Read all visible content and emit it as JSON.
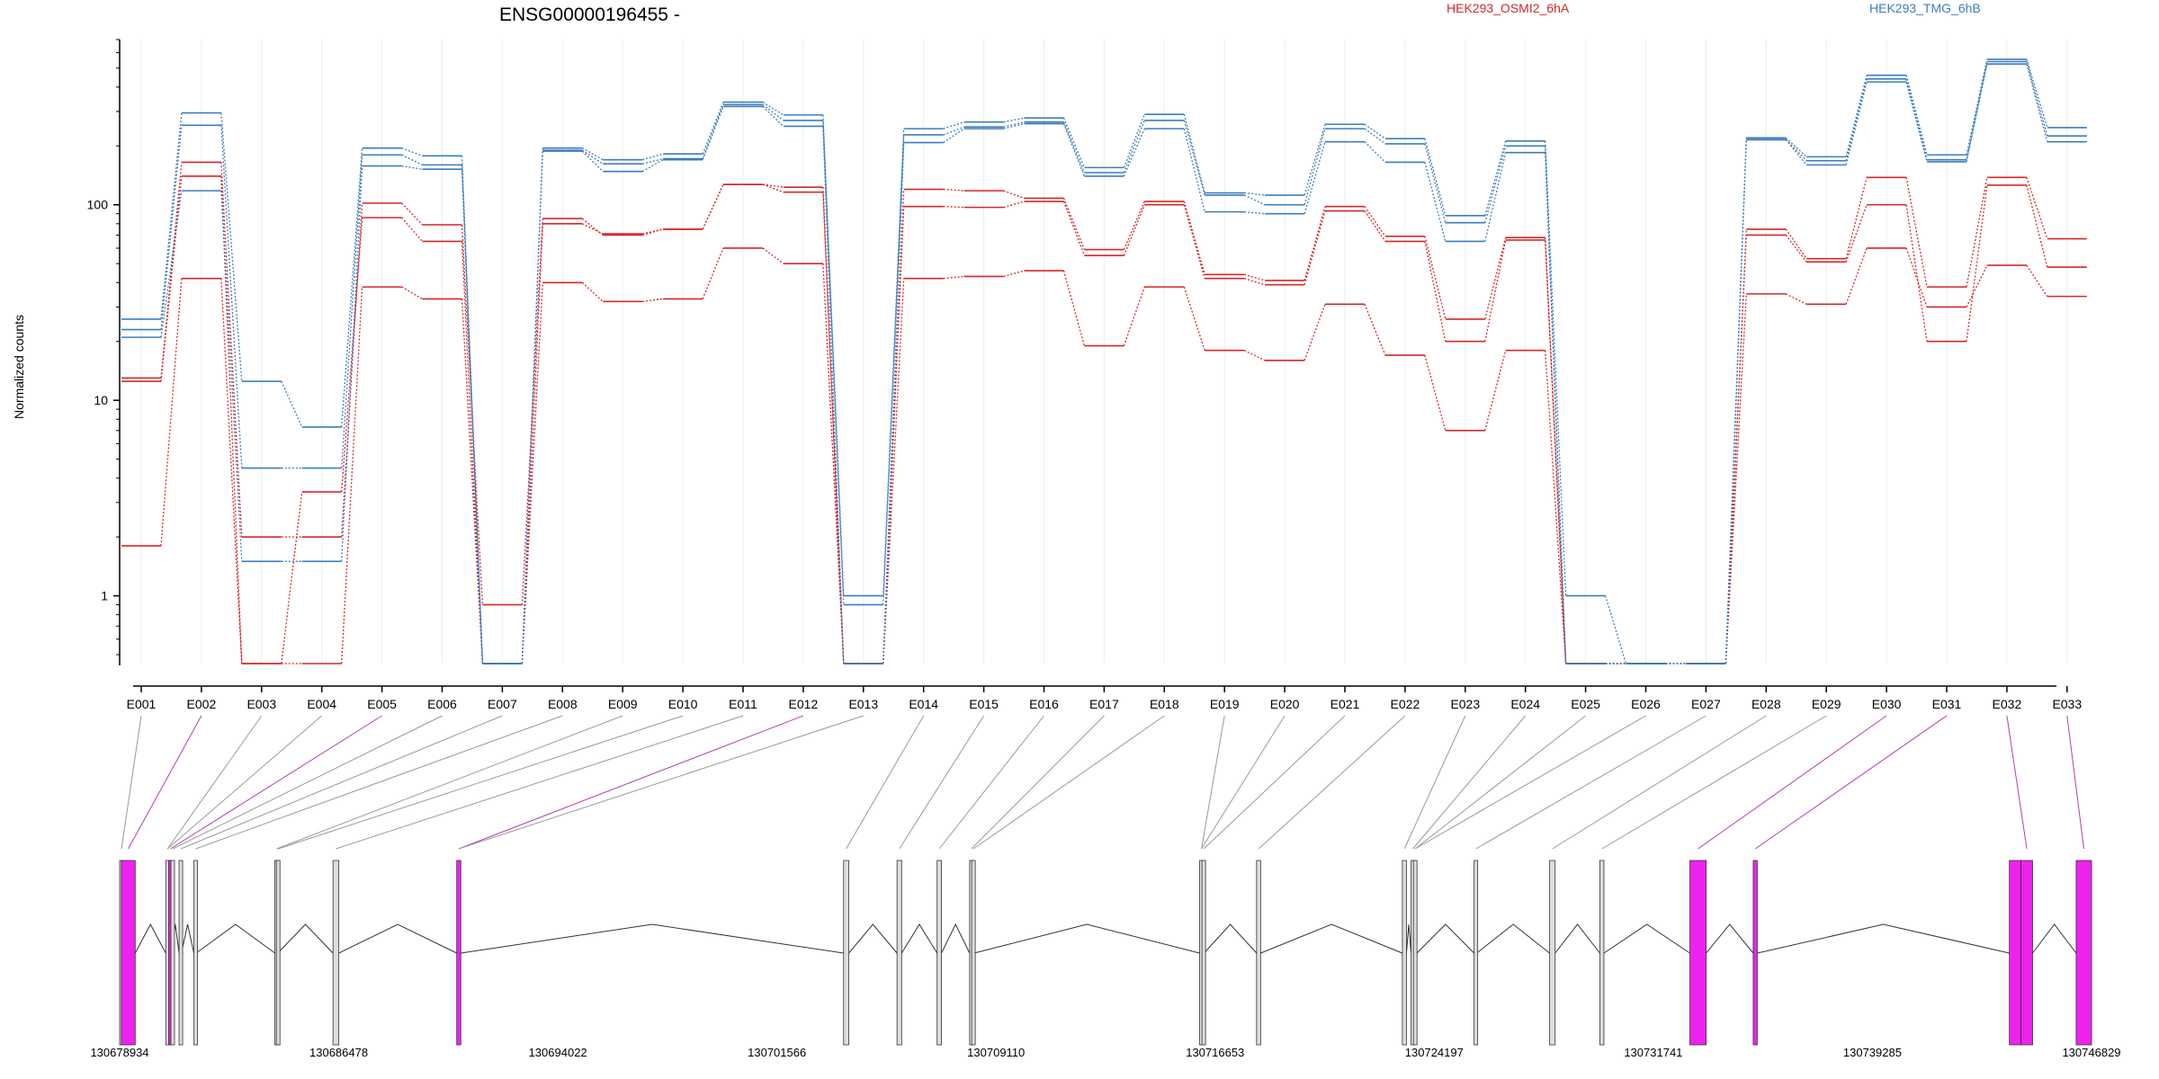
{
  "chart_data": {
    "type": "line",
    "title": "ENSG00000196455 -",
    "ylabel": "Normalized counts",
    "yscale": "log",
    "ylim": [
      0.45,
      700
    ],
    "yticks": [
      1,
      10,
      100
    ],
    "ytick_labels": [
      "1",
      "10",
      "100"
    ],
    "categories": [
      "E001",
      "E002",
      "E003",
      "E004",
      "E005",
      "E006",
      "E007",
      "E008",
      "E009",
      "E010",
      "E011",
      "E012",
      "E013",
      "E014",
      "E015",
      "E016",
      "E017",
      "E018",
      "E019",
      "E020",
      "E021",
      "E022",
      "E023",
      "E024",
      "E025",
      "E026",
      "E027",
      "E028",
      "E029",
      "E030",
      "E031",
      "E032",
      "E033"
    ],
    "legend": [
      {
        "label": "HEK293_OSMI2_6hA",
        "color": "#d62728"
      },
      {
        "label": "HEK293_TMG_6hB",
        "color": "#3b7dbd"
      }
    ],
    "series": [
      {
        "group": "HEK293_OSMI2_6hA",
        "color": "#d62728",
        "values": [
          13,
          165,
          2.0,
          2.0,
          102,
          79,
          0.9,
          85,
          70,
          75,
          127,
          123,
          0.45,
          120,
          118,
          108,
          59,
          104,
          44,
          41,
          98,
          69,
          26,
          68,
          0.45,
          0.45,
          0.45,
          75,
          53,
          138,
          38,
          138,
          67
        ]
      },
      {
        "group": "HEK293_OSMI2_6hA",
        "color": "#d62728",
        "values": [
          12.5,
          140,
          0.45,
          3.4,
          86,
          65,
          0.45,
          80,
          71,
          75,
          127,
          116,
          0.45,
          98,
          97,
          104,
          55,
          100,
          42,
          39,
          93,
          65,
          20,
          66,
          0.45,
          0.45,
          0.45,
          70,
          51,
          100,
          20,
          126,
          48
        ]
      },
      {
        "group": "HEK293_OSMI2_6hA",
        "color": "#d62728",
        "values": [
          1.8,
          42,
          0.45,
          0.45,
          38,
          33,
          0.45,
          40,
          32,
          33,
          60,
          50,
          0.45,
          42,
          43,
          46,
          19,
          38,
          18,
          16,
          31,
          17,
          7,
          18,
          0.45,
          0.45,
          0.45,
          35,
          31,
          60,
          30,
          49,
          34
        ]
      },
      {
        "group": "HEK293_TMG_6hB",
        "color": "#3b7dbd",
        "values": [
          26,
          295,
          12.5,
          7.3,
          195,
          178,
          0.45,
          195,
          170,
          182,
          335,
          288,
          1.0,
          245,
          265,
          278,
          155,
          290,
          115,
          112,
          258,
          218,
          88,
          212,
          1.0,
          0.45,
          0.45,
          220,
          176,
          460,
          180,
          555,
          248
        ]
      },
      {
        "group": "HEK293_TMG_6hB",
        "color": "#3b7dbd",
        "values": [
          23,
          255,
          4.5,
          4.5,
          180,
          160,
          0.45,
          190,
          162,
          172,
          325,
          270,
          0.9,
          228,
          250,
          265,
          146,
          270,
          112,
          100,
          245,
          205,
          81,
          200,
          0.45,
          0.45,
          0.45,
          216,
          168,
          440,
          170,
          540,
          225
        ]
      },
      {
        "group": "HEK293_TMG_6hB",
        "color": "#3b7dbd",
        "values": [
          21,
          118,
          1.5,
          1.5,
          158,
          152,
          0.45,
          188,
          148,
          170,
          318,
          252,
          0.45,
          208,
          245,
          260,
          140,
          245,
          92,
          90,
          210,
          165,
          65,
          185,
          0.45,
          0.45,
          0.45,
          215,
          160,
          425,
          166,
          525,
          210
        ]
      }
    ]
  },
  "gene_model": {
    "coordinate_labels": [
      "130678934",
      "130686478",
      "130694022",
      "130701566",
      "130709110",
      "130716653",
      "130724197",
      "130731741",
      "130739285",
      "130746829"
    ],
    "exons": [
      {
        "id": "E001",
        "start": 130678934,
        "end": 130678990,
        "highlight": false
      },
      {
        "id": "E002",
        "start": 130678990,
        "end": 130679470,
        "highlight": true
      },
      {
        "id": "E003",
        "start": 130680520,
        "end": 130680620,
        "highlight": false
      },
      {
        "id": "E004",
        "start": 130680620,
        "end": 130680700,
        "highlight": true
      },
      {
        "id": "E005",
        "start": 130680700,
        "end": 130680720,
        "highlight": false
      },
      {
        "id": "E006",
        "start": 130680980,
        "end": 130681060,
        "highlight": false
      },
      {
        "id": "E007",
        "start": 130681490,
        "end": 130681570,
        "highlight": false
      },
      {
        "id": "E008",
        "start": 130684280,
        "end": 130684330,
        "highlight": false
      },
      {
        "id": "E009",
        "start": 130684330,
        "end": 130684380,
        "highlight": false
      },
      {
        "id": "E010",
        "start": 130686280,
        "end": 130686480,
        "highlight": false
      },
      {
        "id": "E011",
        "start": 130690540,
        "end": 130690680,
        "highlight": true
      },
      {
        "id": "E012",
        "start": 130703860,
        "end": 130704040,
        "highlight": false
      },
      {
        "id": "E013",
        "start": 130705700,
        "end": 130705860,
        "highlight": false
      },
      {
        "id": "E014",
        "start": 130707080,
        "end": 130707230,
        "highlight": false
      },
      {
        "id": "E015",
        "start": 130708200,
        "end": 130708270,
        "highlight": false
      },
      {
        "id": "E016",
        "start": 130708270,
        "end": 130708350,
        "highlight": false
      },
      {
        "id": "E017",
        "start": 130716120,
        "end": 130716200,
        "highlight": false
      },
      {
        "id": "E018",
        "start": 130716200,
        "end": 130716270,
        "highlight": false
      },
      {
        "id": "E019",
        "start": 130718080,
        "end": 130718220,
        "highlight": false
      },
      {
        "id": "E020",
        "start": 130723100,
        "end": 130723240,
        "highlight": false
      },
      {
        "id": "E021",
        "start": 130723400,
        "end": 130723480,
        "highlight": false
      },
      {
        "id": "E022",
        "start": 130723480,
        "end": 130723600,
        "highlight": false
      },
      {
        "id": "E023",
        "start": 130725570,
        "end": 130725660,
        "highlight": false
      },
      {
        "id": "E024",
        "start": 130728170,
        "end": 130728360,
        "highlight": false
      },
      {
        "id": "E025",
        "start": 130729900,
        "end": 130730040,
        "highlight": false
      },
      {
        "id": "E026",
        "start": 130733000,
        "end": 130733560,
        "highlight": true
      },
      {
        "id": "E027",
        "start": 130735180,
        "end": 130735320,
        "highlight": true
      },
      {
        "id": "E028",
        "start": 130744000,
        "end": 130744400,
        "highlight": true
      },
      {
        "id": "E029",
        "start": 130744400,
        "end": 130744800,
        "highlight": true
      },
      {
        "id": "E030",
        "start": 130746300,
        "end": 130746829,
        "highlight": true
      }
    ],
    "links": [
      {
        "label": "E001",
        "exon": "E001",
        "highlight": false
      },
      {
        "label": "E002",
        "exon": "E002",
        "highlight": true
      },
      {
        "label": "E003",
        "exon": "E003",
        "highlight": false
      },
      {
        "label": "E004",
        "exon": "E003",
        "highlight": false
      },
      {
        "label": "E005",
        "exon": "E004",
        "highlight": true
      },
      {
        "label": "E006",
        "exon": "E005",
        "highlight": false
      },
      {
        "label": "E007",
        "exon": "E006",
        "highlight": false
      },
      {
        "label": "E008",
        "exon": "E007",
        "highlight": false
      },
      {
        "label": "E009",
        "exon": "E008",
        "highlight": false
      },
      {
        "label": "E010",
        "exon": "E009",
        "highlight": false
      },
      {
        "label": "E011",
        "exon": "E010",
        "highlight": false
      },
      {
        "label": "E012",
        "exon": "E011",
        "highlight": true
      },
      {
        "label": "E013",
        "exon": "E011",
        "highlight": false
      },
      {
        "label": "E014",
        "exon": "E012",
        "highlight": false
      },
      {
        "label": "E015",
        "exon": "E013",
        "highlight": false
      },
      {
        "label": "E016",
        "exon": "E014",
        "highlight": false
      },
      {
        "label": "E017",
        "exon": "E015",
        "highlight": false
      },
      {
        "label": "E018",
        "exon": "E016",
        "highlight": false
      },
      {
        "label": "E019",
        "exon": "E017",
        "highlight": false
      },
      {
        "label": "E020",
        "exon": "E017",
        "highlight": false
      },
      {
        "label": "E021",
        "exon": "E018",
        "highlight": false
      },
      {
        "label": "E022",
        "exon": "E019",
        "highlight": false
      },
      {
        "label": "E023",
        "exon": "E020",
        "highlight": false
      },
      {
        "label": "E024",
        "exon": "E021",
        "highlight": false
      },
      {
        "label": "E025",
        "exon": "E022",
        "highlight": false
      },
      {
        "label": "E026",
        "exon": "E022",
        "highlight": false
      },
      {
        "label": "E027",
        "exon": "E023",
        "highlight": false
      },
      {
        "label": "E028",
        "exon": "E024",
        "highlight": false
      },
      {
        "label": "E029",
        "exon": "E025",
        "highlight": false
      },
      {
        "label": "E030",
        "exon": "E026",
        "highlight": true
      },
      {
        "label": "E031",
        "exon": "E027",
        "highlight": true
      },
      {
        "label": "E032",
        "exon": "E029",
        "highlight": true
      },
      {
        "label": "E033",
        "exon": "E030",
        "highlight": true
      }
    ],
    "colors": {
      "highlight": "#ee22ee",
      "exon": "#dddddd",
      "link": "#999999",
      "highlight_link": "#b040b0",
      "intron": "#333333"
    }
  }
}
